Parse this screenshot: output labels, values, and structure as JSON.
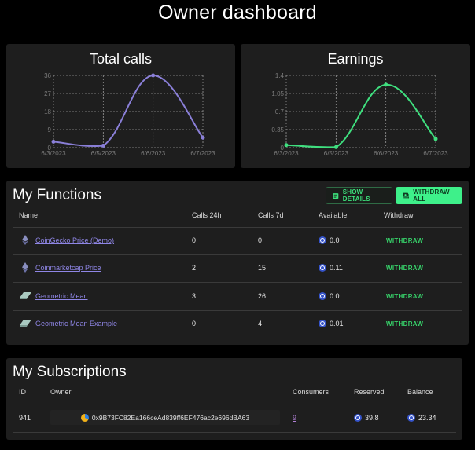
{
  "page": {
    "title": "Owner dashboard"
  },
  "charts": {
    "calls": {
      "title": "Total calls"
    },
    "earnings": {
      "title": "Earnings"
    }
  },
  "chart_data": [
    {
      "type": "line",
      "title": "Total calls",
      "categories": [
        "6/3/2023",
        "6/5/2023",
        "6/6/2023",
        "6/7/2023"
      ],
      "values": [
        3,
        1,
        36,
        5
      ],
      "yticks": [
        "0",
        "9",
        "18",
        "27",
        "36"
      ],
      "ylim": [
        0,
        36
      ],
      "grid": true,
      "color": "#8a7fd8",
      "xlabel": "",
      "ylabel": ""
    },
    {
      "type": "line",
      "title": "Earnings",
      "categories": [
        "6/3/2023",
        "6/5/2023",
        "6/6/2023",
        "6/7/2023"
      ],
      "values": [
        0.05,
        0.01,
        1.22,
        0.17
      ],
      "yticks": [
        "0",
        "0.35",
        "0.7",
        "1.05",
        "1.4"
      ],
      "ylim": [
        0,
        1.4
      ],
      "grid": true,
      "color": "#3fe07f",
      "xlabel": "",
      "ylabel": ""
    }
  ],
  "functions": {
    "title": "My Functions",
    "show_details_label": "SHOW DETAILS",
    "withdraw_all_label": "WITHDRAW ALL",
    "columns": [
      "Name",
      "Calls 24h",
      "Calls 7d",
      "Available",
      "Withdraw"
    ],
    "rows": [
      {
        "icon": "ethereum-icon",
        "name": "CoinGecko Price (Demo)",
        "calls24h": "0",
        "calls7d": "0",
        "available": "0.0",
        "withdraw": "WITHDRAW"
      },
      {
        "icon": "ethereum-icon",
        "name": "Coinmarketcap Price",
        "calls24h": "2",
        "calls7d": "15",
        "available": "0.11",
        "withdraw": "WITHDRAW"
      },
      {
        "icon": "eraser-icon",
        "name": "Geometric Mean",
        "calls24h": "3",
        "calls7d": "26",
        "available": "0.0",
        "withdraw": "WITHDRAW"
      },
      {
        "icon": "eraser-icon",
        "name": "Geometric Mean Example",
        "calls24h": "0",
        "calls7d": "4",
        "available": "0.01",
        "withdraw": "WITHDRAW"
      }
    ]
  },
  "subscriptions": {
    "title": "My Subscriptions",
    "columns": [
      "ID",
      "Owner",
      "Consumers",
      "Reserved",
      "Balance"
    ],
    "rows": [
      {
        "id": "941",
        "owner": "0x9B73FC82Ea166ceAd839ff6EF476ac2e696dBA63",
        "consumers": "9",
        "reserved": "39.8",
        "balance": "23.34"
      }
    ]
  },
  "colors": {
    "accent_green": "#3ef08a",
    "calls_line": "#8a7fd8",
    "earnings_line": "#3fe07f",
    "link_purple": "#8f86e6",
    "token_blue": "#3553c9"
  }
}
